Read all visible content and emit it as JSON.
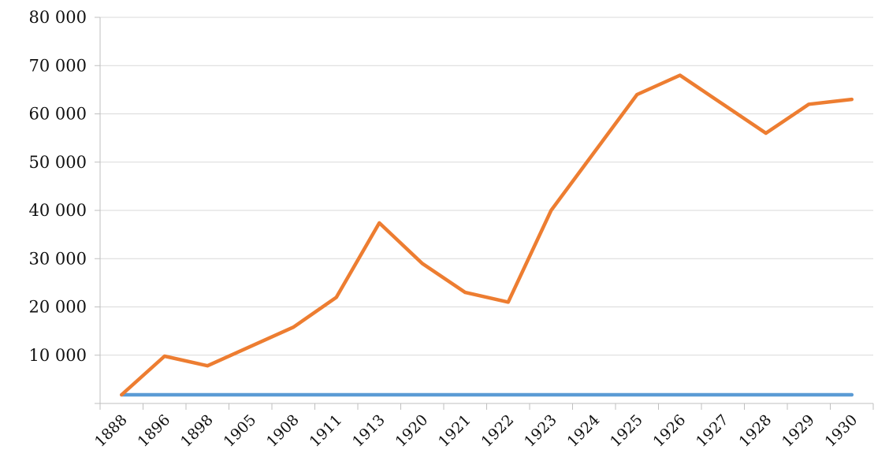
{
  "chart_data": {
    "type": "line",
    "categories": [
      "1888",
      "1896",
      "1898",
      "1905",
      "1908",
      "1911",
      "1913",
      "1920",
      "1921",
      "1922",
      "1923",
      "1924",
      "1925",
      "1926",
      "1927",
      "1928",
      "1929",
      "1930"
    ],
    "y_tick_labels": [
      "80 000",
      "70 000",
      "60 000",
      "50 000",
      "40 000",
      "30 000",
      "20 000",
      "10 000"
    ],
    "ylim": [
      0,
      80000
    ],
    "y_ticks": [
      10000,
      20000,
      30000,
      40000,
      50000,
      60000,
      70000,
      80000
    ],
    "grid": true,
    "legend": "none",
    "series": [
      {
        "color": "#5b9bd5",
        "values": [
          1800,
          1800,
          1800,
          1800,
          1800,
          1800,
          1800,
          1800,
          1800,
          1800,
          1800,
          1800,
          1800,
          1800,
          1800,
          1800,
          1800,
          1800
        ]
      },
      {
        "color": "#ed7d31",
        "values": [
          1800,
          9800,
          7800,
          11800,
          15800,
          22000,
          37400,
          29000,
          23000,
          21000,
          40000,
          52000,
          64000,
          68000,
          62000,
          56000,
          62000,
          63000
        ]
      }
    ]
  }
}
